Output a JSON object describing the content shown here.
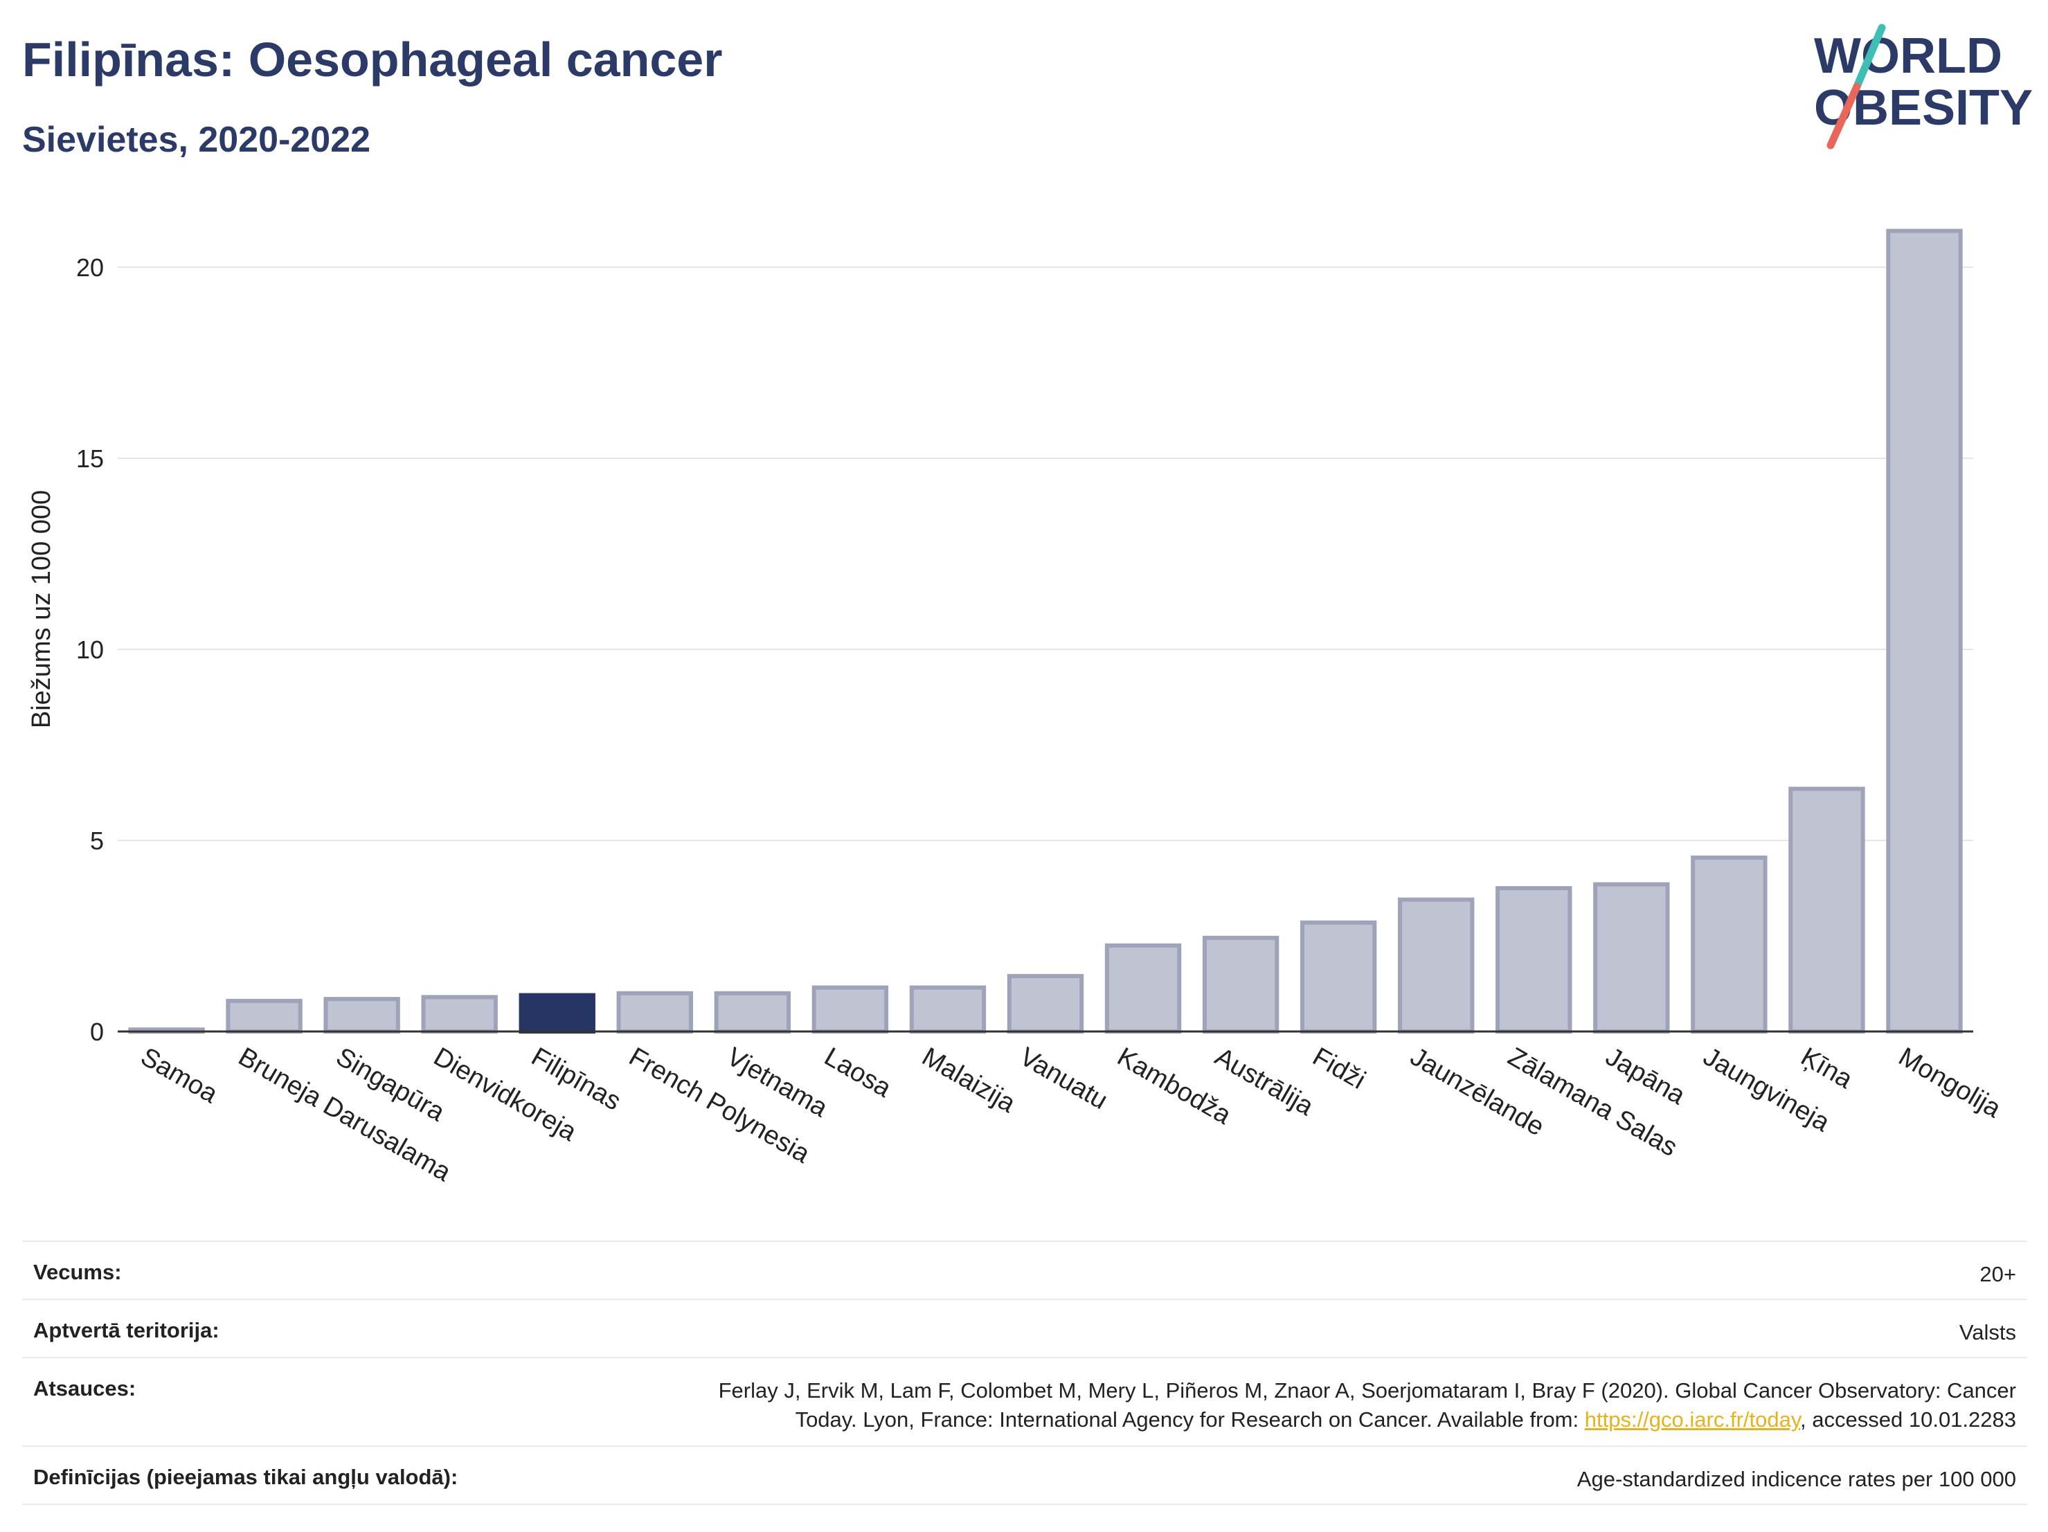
{
  "title": "Filipīnas: Oesophageal cancer",
  "subtitle": "Sievietes, 2020-2022",
  "logo": {
    "line1": "WORLD",
    "line2": "OBESITY",
    "colors": {
      "text": "#2b3a67",
      "slash_top": "#3fbfb4",
      "slash_bottom": "#e8675a"
    }
  },
  "colors": {
    "bar": "#c0c4d2",
    "bar_stroke": "#9ea3ba",
    "highlight": "#263564",
    "grid": "#e5e5ec",
    "axis": "#333333"
  },
  "chart_data": {
    "type": "bar",
    "categories": [
      "Samoa",
      "Bruneja Darusalama",
      "Singapūra",
      "Dienvidkoreja",
      "Filipīnas",
      "French Polynesia",
      "Vjetnama",
      "Laosa",
      "Malaizija",
      "Vanuatu",
      "Kambodža",
      "Austrālija",
      "Fidži",
      "Jaunzēlande",
      "Zālamana Salas",
      "Japāna",
      "Jaungvineja",
      "Ķīna",
      "Mongolija"
    ],
    "values": [
      0.05,
      0.8,
      0.85,
      0.9,
      0.95,
      1.0,
      1.0,
      1.15,
      1.15,
      1.45,
      2.25,
      2.45,
      2.85,
      3.45,
      3.75,
      3.85,
      4.55,
      6.35,
      20.95
    ],
    "highlight": "Filipīnas",
    "xlabel": "",
    "ylabel": "Biežums uz 100 000",
    "ylim": [
      0,
      22
    ],
    "yticks": [
      0,
      5,
      10,
      15,
      20
    ],
    "grid": true
  },
  "meta": [
    {
      "label": "Vecums:",
      "value": "20+"
    },
    {
      "label": "Aptvertā teritorija:",
      "value": "Valsts"
    },
    {
      "label": "Atsauces:",
      "value_line1": "Ferlay J, Ervik M, Lam F, Colombet M, Mery L, Piñeros M, Znaor A, Soerjomataram I, Bray F (2020). Global Cancer Observatory: Cancer",
      "value_line2_pre": "Today. Lyon, France: International Agency for Research on Cancer. Available from: ",
      "link": "https://gco.iarc.fr/today",
      "value_line2_post": ", accessed 10.01.2283"
    },
    {
      "label": "Definīcijas (pieejamas tikai angļu valodā):",
      "value": "Age-standardized indicence rates per 100 000"
    }
  ]
}
